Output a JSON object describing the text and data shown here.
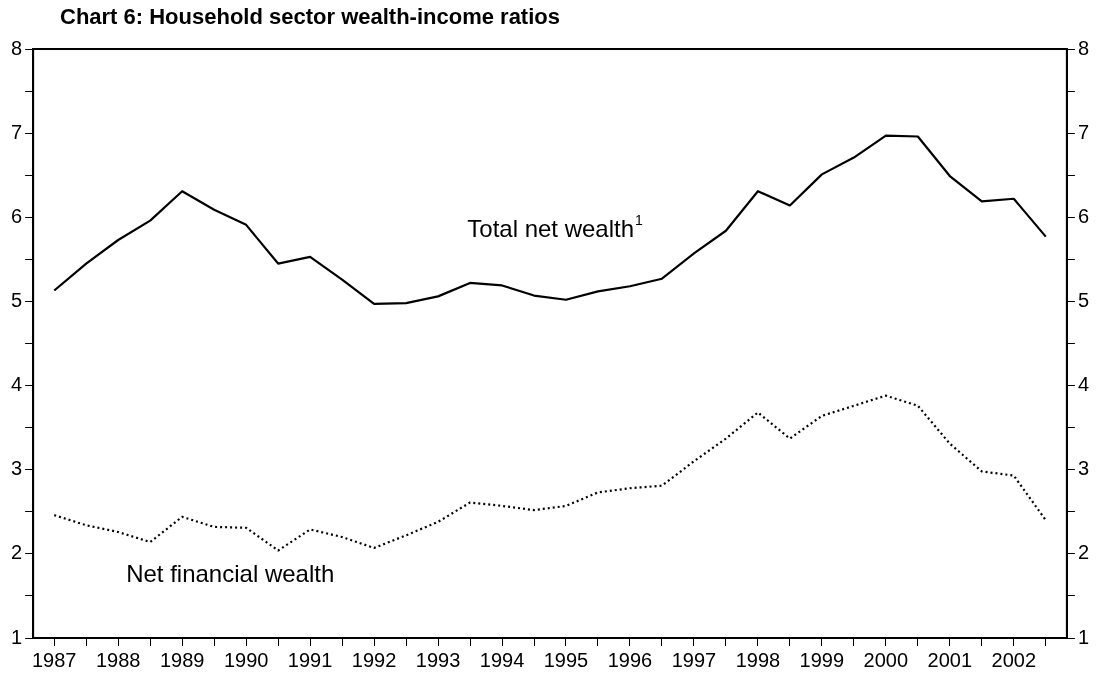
{
  "chart_data": {
    "type": "line",
    "title": "Chart 6: Household sector wealth-income ratios",
    "x": [
      1987,
      1987.5,
      1988,
      1988.5,
      1989,
      1989.5,
      1990,
      1990.5,
      1991,
      1991.5,
      1992,
      1992.5,
      1993,
      1993.5,
      1994,
      1994.5,
      1995,
      1995.5,
      1996,
      1996.5,
      1997,
      1997.5,
      1998,
      1998.5,
      1999,
      1999.5,
      2000,
      2000.5,
      2001,
      2001.5,
      2002,
      2002.5
    ],
    "series": [
      {
        "name": "Total net wealth$^{1}$",
        "color": "#000000",
        "line_style": "solid",
        "values": [
          5.13,
          5.45,
          5.73,
          5.96,
          6.31,
          6.09,
          5.91,
          5.45,
          5.53,
          5.26,
          4.97,
          4.98,
          5.06,
          5.22,
          5.19,
          5.07,
          5.02,
          5.12,
          5.18,
          5.27,
          5.57,
          5.84,
          6.31,
          6.14,
          6.51,
          6.71,
          6.97,
          6.96,
          6.49,
          6.19,
          6.22,
          5.77
        ]
      },
      {
        "name": "Net financial wealth",
        "color": "#000000",
        "line_style": "dotted",
        "values": [
          2.46,
          2.34,
          2.26,
          2.14,
          2.44,
          2.32,
          2.31,
          2.04,
          2.29,
          2.2,
          2.07,
          2.22,
          2.38,
          2.61,
          2.57,
          2.52,
          2.57,
          2.73,
          2.78,
          2.81,
          3.1,
          3.37,
          3.68,
          3.37,
          3.64,
          3.76,
          3.88,
          3.76,
          3.31,
          2.98,
          2.93,
          2.4
        ]
      }
    ],
    "xlim": [
      1986.67,
      2002.83
    ],
    "xticks": [
      1987,
      {
        "value": 1987.5,
        "label": null
      },
      1988,
      {
        "value": 1988.5,
        "label": null
      },
      1989,
      {
        "value": 1989.5,
        "label": null
      },
      1990,
      {
        "value": 1990.5,
        "label": null
      },
      1991,
      {
        "value": 1991.5,
        "label": null
      },
      1992,
      {
        "value": 1992.5,
        "label": null
      },
      1993,
      {
        "value": 1993.5,
        "label": null
      },
      1994,
      {
        "value": 1994.5,
        "label": null
      },
      1995,
      {
        "value": 1995.5,
        "label": null
      },
      1996,
      {
        "value": 1996.5,
        "label": null
      },
      1997,
      {
        "value": 1997.5,
        "label": null
      },
      1998,
      {
        "value": 1998.5,
        "label": null
      },
      1999,
      {
        "value": 1999.5,
        "label": null
      },
      2000,
      {
        "value": 2000.5,
        "label": null
      },
      2001,
      {
        "value": 2001.5,
        "label": null
      },
      2002,
      {
        "value": 2002.5,
        "label": null
      }
    ],
    "ylim": [
      1,
      8
    ],
    "yticks": [
      1,
      {
        "value": 1.5,
        "label": null
      },
      2,
      {
        "value": 2.5,
        "label": null
      },
      3,
      {
        "value": 3.5,
        "label": null
      },
      4,
      {
        "value": 4.5,
        "label": null
      },
      5,
      {
        "value": 5.5,
        "label": null
      },
      6,
      {
        "value": 6.5,
        "label": null
      },
      7,
      {
        "value": 7.5,
        "label": null
      },
      8
    ],
    "y2lim": [
      1,
      8
    ],
    "y2ticks": [
      1,
      {
        "value": 1.5,
        "label": null
      },
      2,
      {
        "value": 2.5,
        "label": null
      },
      3,
      {
        "value": 3.5,
        "label": null
      },
      4,
      {
        "value": 4.5,
        "label": null
      },
      5,
      {
        "value": 5.5,
        "label": null
      },
      6,
      {
        "value": 6.5,
        "label": null
      },
      7,
      {
        "value": 7.5,
        "label": null
      },
      8
    ],
    "grid": false,
    "legend": false,
    "marker": "none"
  }
}
